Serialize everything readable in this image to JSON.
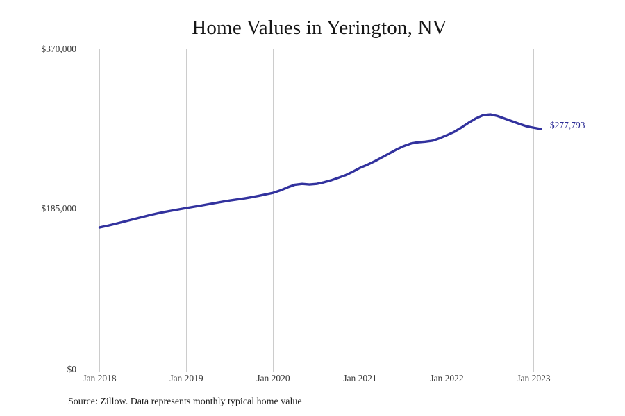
{
  "chart_data": {
    "type": "line",
    "title": "Home Values in Yerington, NV",
    "series_name": "Monthly typical home value",
    "x_start": "Jan 2018",
    "x_end": "Feb 2023",
    "frequency": "monthly",
    "x_tick_labels": [
      "Jan 2018",
      "Jan 2019",
      "Jan 2020",
      "Jan 2021",
      "Jan 2022",
      "Jan 2023"
    ],
    "y_tick_labels": [
      "$370,000",
      "$185,000",
      "$0"
    ],
    "ylim": [
      0,
      370000
    ],
    "grid": "vertical-only",
    "legend": "none",
    "line_color": "#32329e",
    "values": [
      164200,
      166000,
      168000,
      170100,
      172200,
      174300,
      176400,
      178500,
      180400,
      182100,
      183600,
      185100,
      186600,
      188000,
      189400,
      190900,
      192400,
      193900,
      195300,
      196500,
      197700,
      199100,
      200700,
      202400,
      204200,
      207000,
      210500,
      213500,
      214500,
      213800,
      214500,
      216300,
      218600,
      221500,
      224500,
      228500,
      233000,
      236500,
      240500,
      245000,
      249500,
      254000,
      258000,
      261000,
      262500,
      263200,
      264300,
      267200,
      270700,
      274500,
      279500,
      285000,
      290000,
      293800,
      294700,
      292800,
      289800,
      286800,
      283800,
      281000,
      279300,
      277793
    ],
    "end_label": "$277,793",
    "source": "Source: Zillow. Data represents monthly typical home value"
  }
}
